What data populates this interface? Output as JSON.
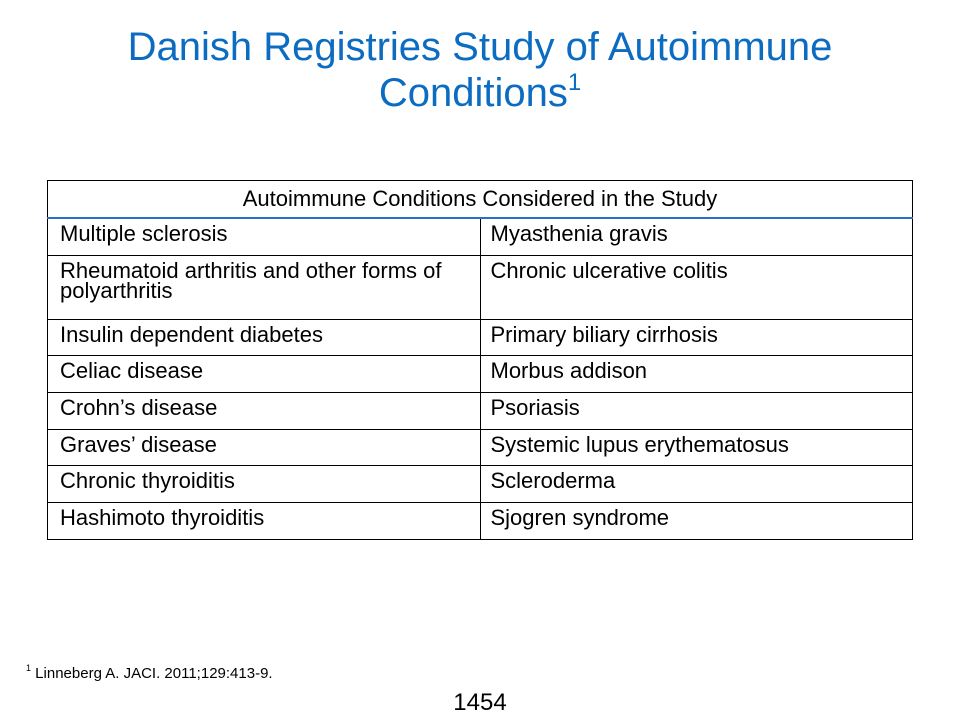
{
  "title": {
    "line1": "Danish Registries Study of Autoimmune",
    "line2": "Conditions",
    "superscript": "1"
  },
  "table": {
    "header": "Autoimmune Conditions Considered in the Study",
    "rows": [
      {
        "left": "Multiple sclerosis",
        "right": "Myasthenia gravis"
      },
      {
        "left": "Rheumatoid arthritis and other forms of polyarthritis",
        "right": "Chronic ulcerative colitis"
      },
      {
        "left": "Insulin dependent diabetes",
        "right": "Primary biliary cirrhosis"
      },
      {
        "left": "Celiac disease",
        "right": "Morbus addison"
      },
      {
        "left": "Crohn’s disease",
        "right": "Psoriasis"
      },
      {
        "left": "Graves’ disease",
        "right": "Systemic lupus erythematosus"
      },
      {
        "left": "Chronic thyroiditis",
        "right": "Scleroderma"
      },
      {
        "left": "Hashimoto thyroiditis",
        "right": "Sjogren syndrome"
      }
    ]
  },
  "footnote": {
    "marker": "1",
    "text": " Linneberg A. JACI. 2011;129:413-9."
  },
  "page_number": "1454",
  "colors": {
    "title": "#0b6cc1",
    "header_rule": "#2a6fc7"
  }
}
